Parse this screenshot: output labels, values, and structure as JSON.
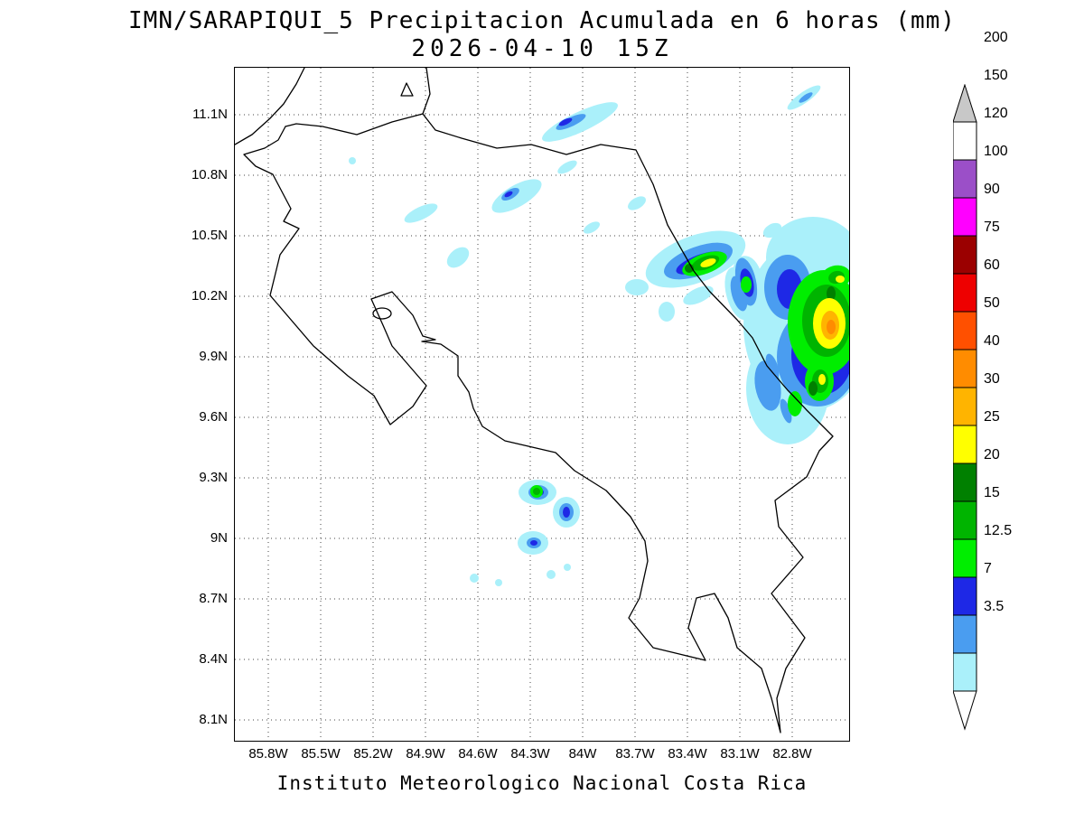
{
  "header": {
    "title": "IMN/SARAPIQUI_5 Precipitacion Acumulada en 6 horas (mm)",
    "subtitle": "2026-04-10 15Z"
  },
  "footer": {
    "credit": "Instituto Meteorologico Nacional Costa Rica"
  },
  "map": {
    "y_axis_labels": [
      "11.1N",
      "10.8N",
      "10.5N",
      "10.2N",
      "9.9N",
      "9.6N",
      "9.3N",
      "9N",
      "8.7N",
      "8.4N",
      "8.1N"
    ],
    "x_axis_labels": [
      "85.8W",
      "85.5W",
      "85.2W",
      "84.9W",
      "84.6W",
      "84.3W",
      "84W",
      "83.7W",
      "83.4W",
      "83.1W",
      "82.8W"
    ]
  },
  "colorbar": {
    "boundary_labels": [
      "200",
      "150",
      "120",
      "100",
      "90",
      "75",
      "60",
      "50",
      "40",
      "30",
      "25",
      "20",
      "15",
      "12.5",
      "7",
      "3.5"
    ],
    "cell_colors": [
      "#ffffff",
      "#9b4fc8",
      "#ff00ff",
      "#9b0000",
      "#ee0000",
      "#ff5000",
      "#ff8c00",
      "#ffb400",
      "#ffff00",
      "#008000",
      "#00b400",
      "#00ee00",
      "#1e28e6",
      "#4a9df0",
      "#aaf0fa"
    ],
    "above_max_color": "#c8c8c8",
    "below_min_color": "#ffffff"
  },
  "levels": {
    "mm3_5": "#aaf0fa",
    "mm7": "#4a9df0",
    "mm12_5": "#1e28e6",
    "mm15": "#00ee00",
    "mm20": "#00b400",
    "mm25": "#008000",
    "mm30": "#ffff00",
    "mm40": "#ffb400",
    "mm50": "#ff8c00"
  }
}
